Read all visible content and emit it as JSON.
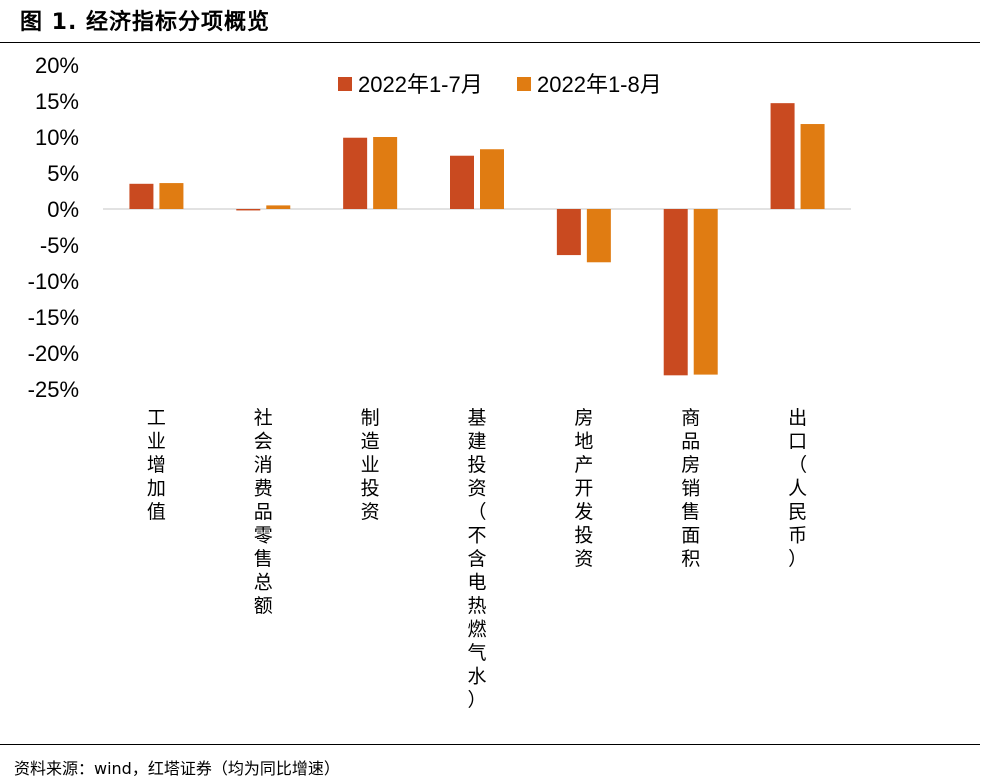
{
  "figure": {
    "title": "图 1. 经济指标分项概览",
    "source": "资料来源：wind，红塔证券（均为同比增速）"
  },
  "chart_data": {
    "type": "bar",
    "categories": [
      "工业增加值",
      "社会消费品零售总额",
      "制造业投资",
      "基建投资（不含电热燃气水）",
      "房地产开发投资",
      "商品房销售面积",
      "出口（人民币）"
    ],
    "series": [
      {
        "name": "2022年1-7月",
        "color": "#C94A20",
        "values": [
          3.5,
          -0.2,
          9.9,
          7.4,
          -6.4,
          -23.1,
          14.7
        ]
      },
      {
        "name": "2022年1-8月",
        "color": "#E07C12",
        "values": [
          3.6,
          0.5,
          10.0,
          8.3,
          -7.4,
          -23.0,
          11.8
        ]
      }
    ],
    "ylim": [
      -25,
      20
    ],
    "yticks": [
      20,
      15,
      10,
      5,
      0,
      -5,
      -10,
      -15,
      -20,
      -25
    ],
    "ytick_format": "percent",
    "legend_position": "top",
    "grid": false
  }
}
